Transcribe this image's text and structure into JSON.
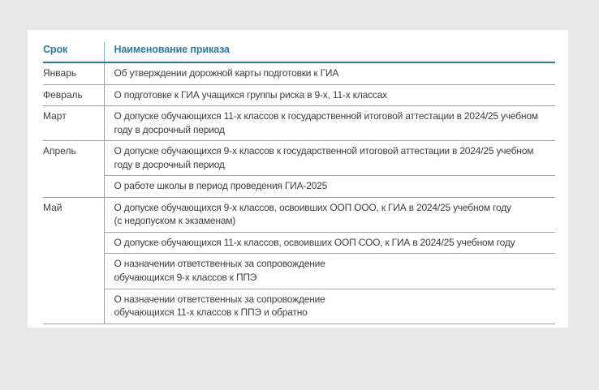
{
  "page": {
    "background_color": "#e8e8e8",
    "card_color": "#ffffff"
  },
  "colors": {
    "header_text": "#2b7aa0",
    "header_underline": "#2f7396",
    "header_vertical_divider": "#85b2cf",
    "row_divider": "#9c9c9c",
    "sub_row_divider": "#a5a5a5",
    "body_text": "#3d3d3d"
  },
  "table": {
    "headers": {
      "period": "Срок",
      "order": "Наименование приказа"
    },
    "groups": [
      {
        "period": "Январь",
        "orders": [
          "Об утверждении дорожной карты подготовки к ГИА"
        ]
      },
      {
        "period": "Февраль",
        "orders": [
          "О подготовке к ГИА учащихся группы риска в 9-х, 11-х классах"
        ]
      },
      {
        "period": "Март",
        "orders": [
          "О допуске обучающихся 11-х классов к государственной итоговой аттестации в 2024/25 учебном\nгоду в досрочный период"
        ]
      },
      {
        "period": "Апрель",
        "orders": [
          "О допуске обучающихся 9-х классов к государственной итоговой аттестации в 2024/25 учебном\nгоду в досрочный период",
          "О работе школы в период проведения ГИА-2025"
        ]
      },
      {
        "period": "Май",
        "orders": [
          "О допуске обучающихся 9-х классов, освоивших ООП ООО, к ГИА в 2024/25 учебном году\n(с недопуском к экзаменам)",
          "О допуске обучающихся 11-х классов, освоивших ООП СОО, к ГИА в 2024/25 учебном году",
          "О назначении ответственных за сопровождение\nобучающихся 9-х классов к ППЭ",
          "О назначении ответственных за сопровождение\nобучающихся 11-х классов к ППЭ и обратно"
        ]
      }
    ]
  }
}
